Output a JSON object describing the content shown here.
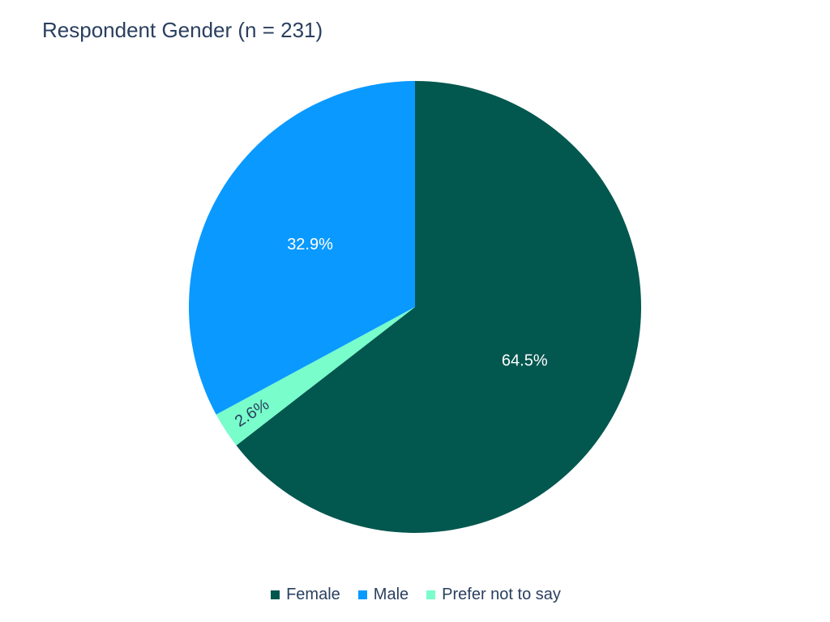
{
  "chart_data": {
    "type": "pie",
    "title": "Respondent Gender (n = 231)",
    "slices": [
      {
        "name": "Female",
        "value": 149,
        "label": "64.5%",
        "color": "#02574f",
        "label_color": "#ffffff"
      },
      {
        "name": "Prefer not to say",
        "value": 6,
        "label": "2.6%",
        "color": "#78fdcb",
        "label_color": "#2a3f5f"
      },
      {
        "name": "Male",
        "value": 76,
        "label": "32.9%",
        "color": "#0a99ff",
        "label_color": "#ffffff"
      }
    ],
    "legend": {
      "placement": "bottom-center",
      "items": [
        {
          "label": "Female",
          "color": "#02574f"
        },
        {
          "label": "Male",
          "color": "#0a99ff"
        },
        {
          "label": "Prefer not to say",
          "color": "#78fdcb"
        }
      ]
    }
  }
}
